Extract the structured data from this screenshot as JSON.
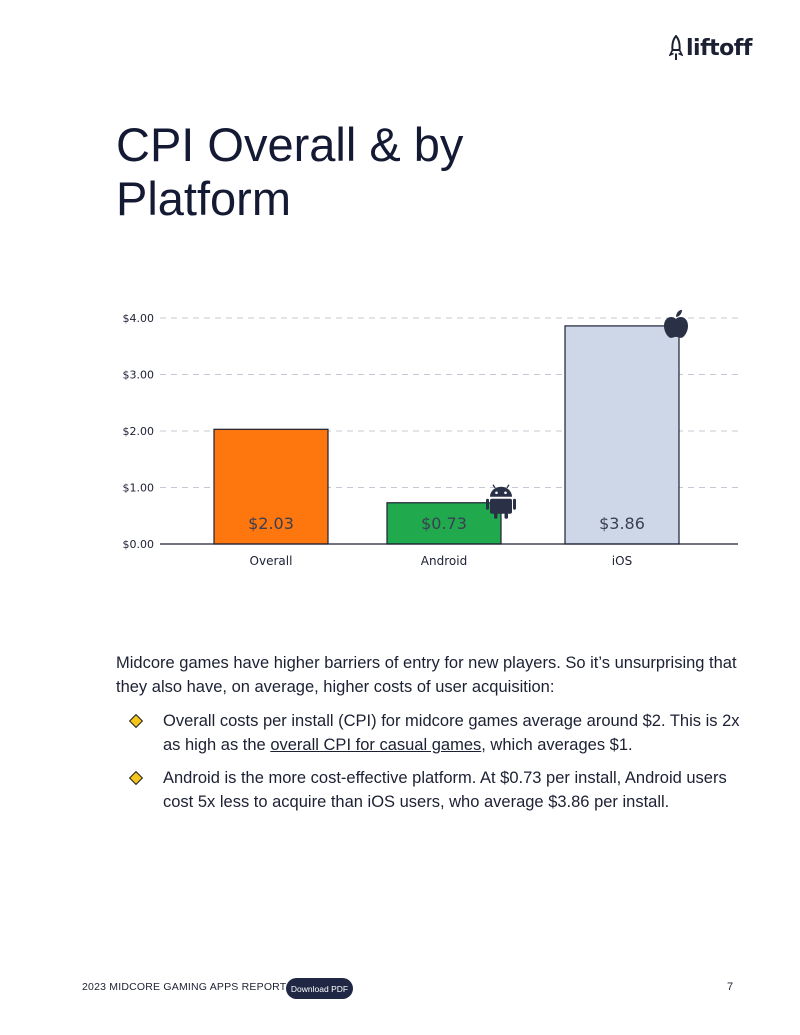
{
  "header": {
    "logo_text": "liftoff",
    "title": "CPI Overall & by Platform"
  },
  "chart_data": {
    "type": "bar",
    "categories": [
      "Overall",
      "Android",
      "iOS"
    ],
    "values": [
      2.03,
      0.73,
      3.86
    ],
    "value_labels": [
      "$2.03",
      "$0.73",
      "$3.86"
    ],
    "colors": [
      "#fe760e",
      "#21a94e",
      "#cdd7e8"
    ],
    "icons": [
      "",
      "android-icon",
      "apple-icon"
    ],
    "title": "",
    "xlabel": "",
    "ylabel": "",
    "ylim": [
      0,
      4
    ],
    "yticks": [
      0,
      1,
      2,
      3,
      4
    ],
    "ytick_labels": [
      "$0.00",
      "$1.00",
      "$2.00",
      "$3.00",
      "$4.00"
    ],
    "grid": "horizontal dashed",
    "legend": "none"
  },
  "body": {
    "intro": "Midcore games have higher barriers of entry for new players. So it’s unsurprising that they also have, on average, higher costs of user acquisition:",
    "bullets": [
      {
        "before": "Overall costs per install (CPI) for midcore games average around $2. This is 2x as high as the ",
        "link": "overall CPI for casual games",
        "after": ", which averages $1."
      },
      {
        "text": "Android is the more cost-effective platform. At $0.73 per install, Android users cost 5x less to acquire than iOS users, who average $3.86 per install."
      }
    ]
  },
  "footer": {
    "report_name": "2023 MIDCORE GAMING APPS REPORT",
    "download_label": "Download PDF",
    "page_number": "7"
  }
}
